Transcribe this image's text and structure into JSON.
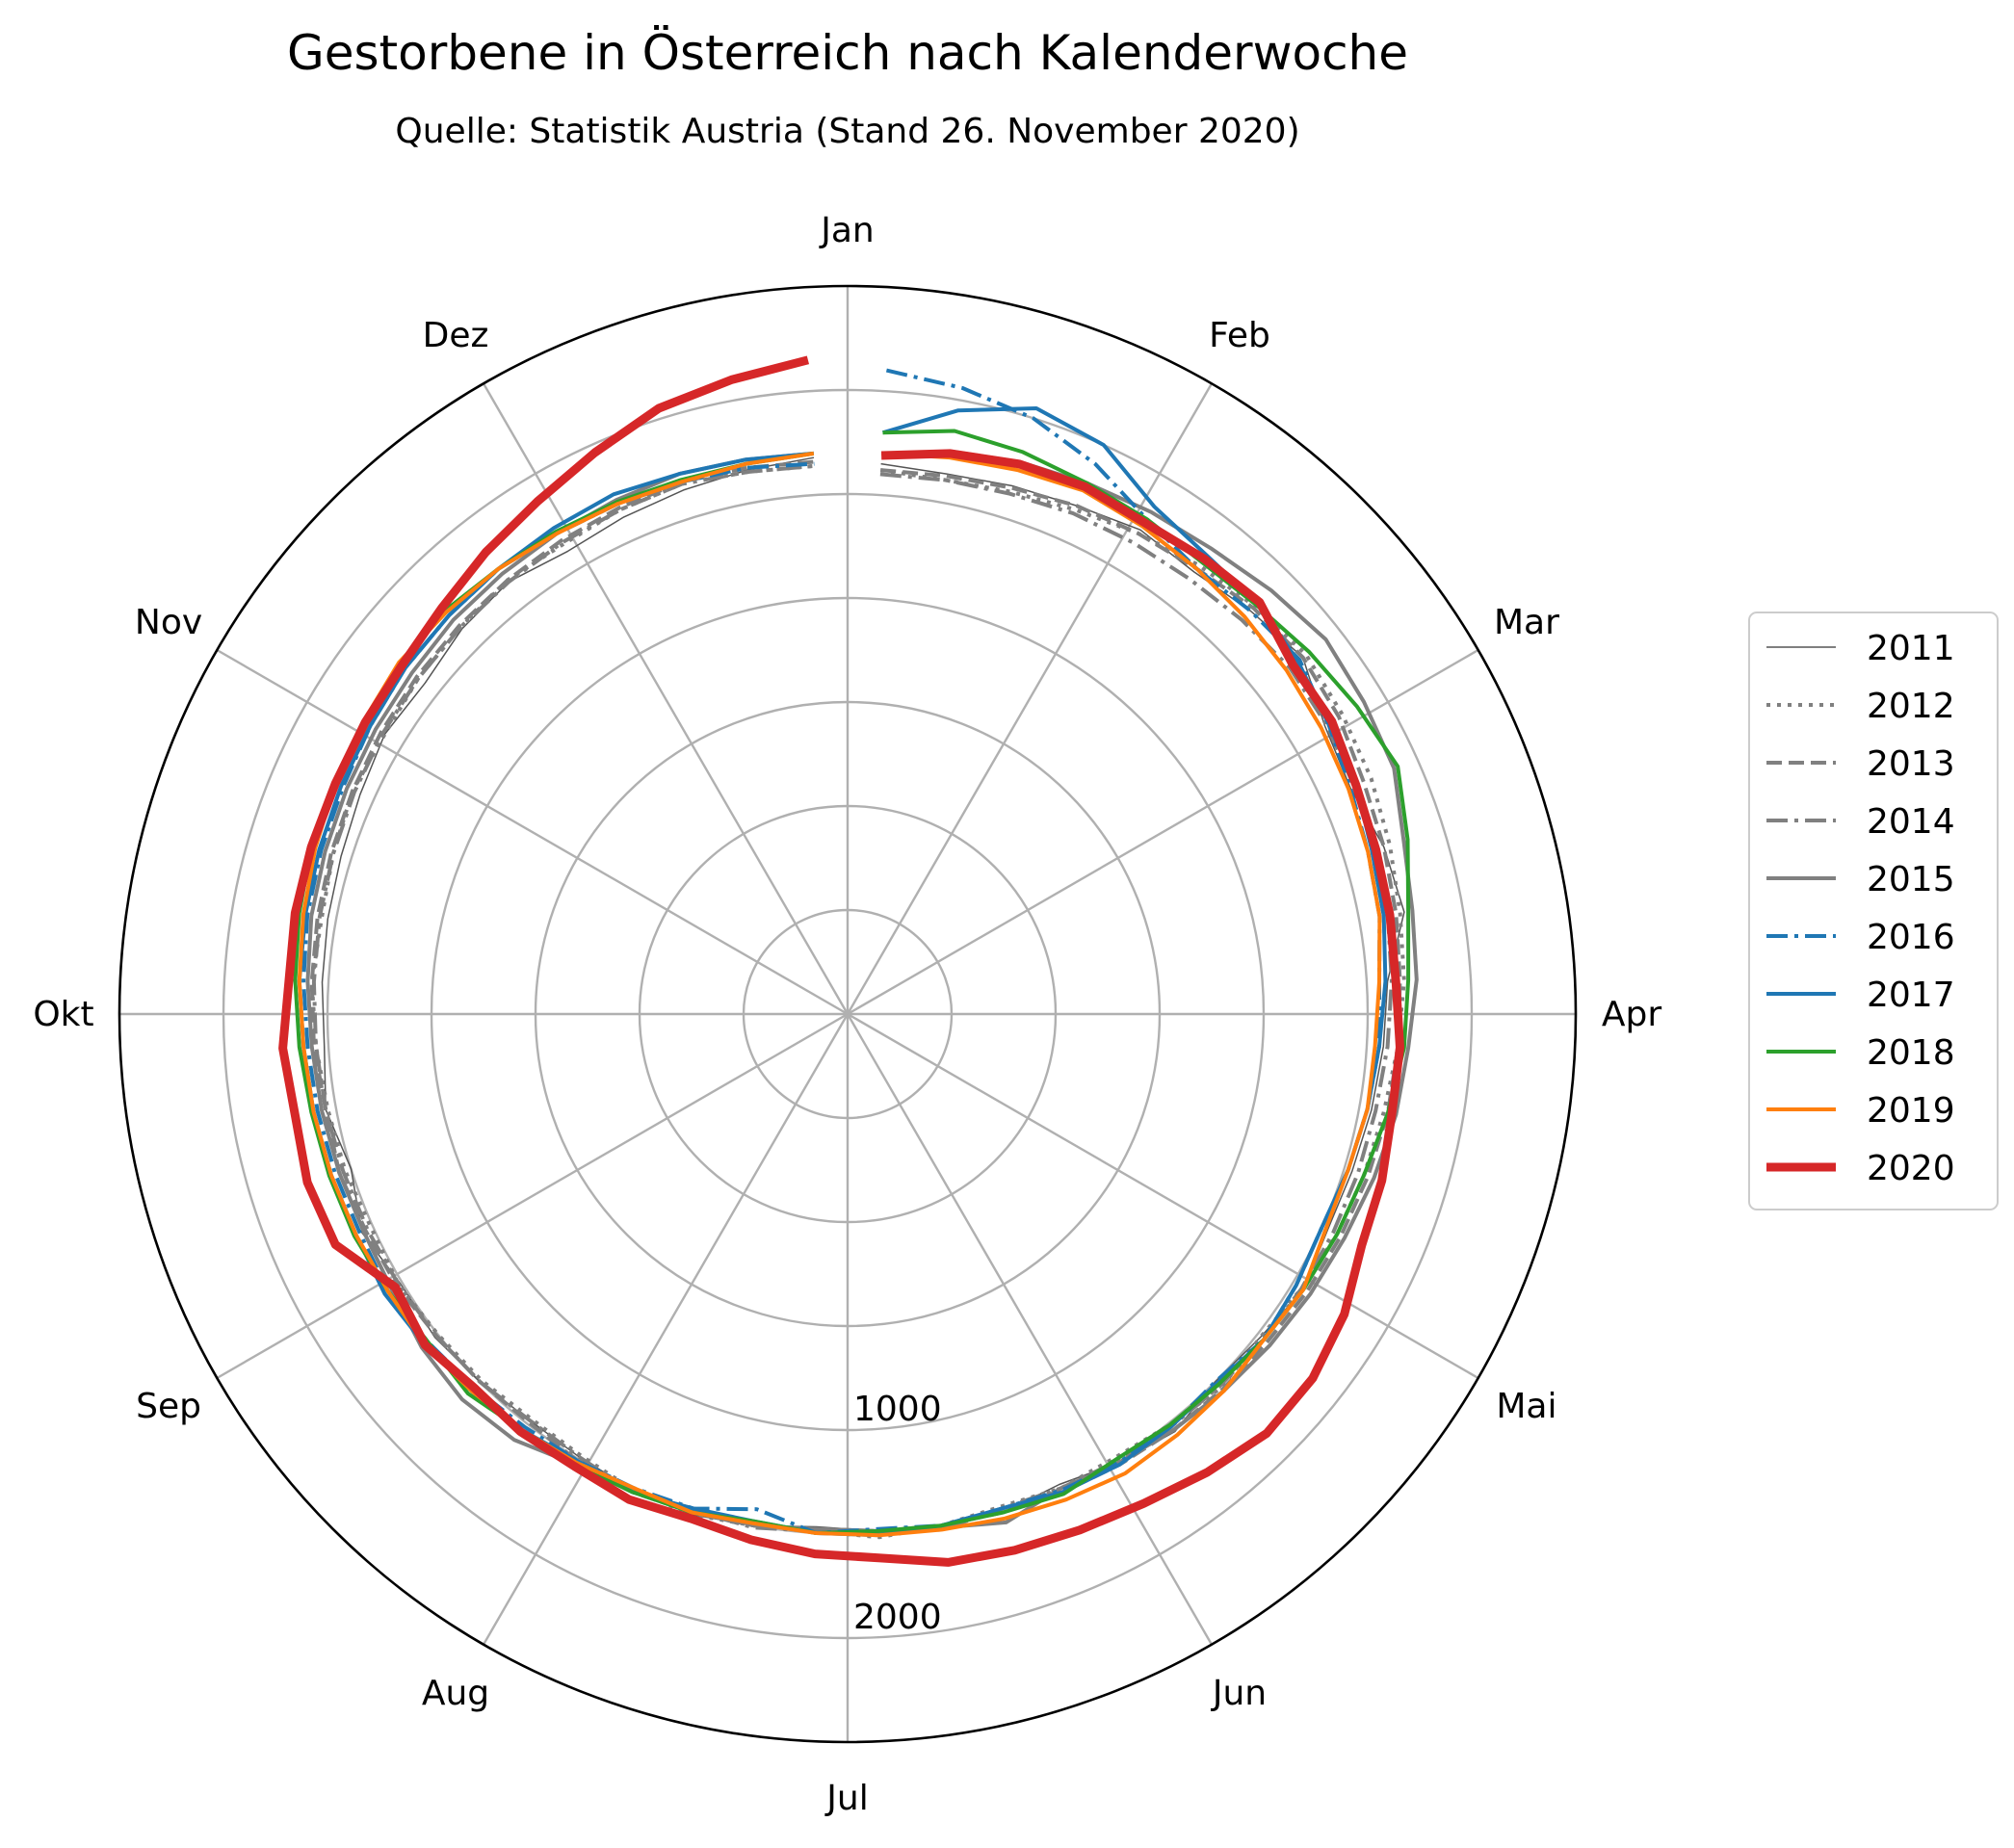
{
  "chart_data": {
    "type": "line",
    "projection": "polar",
    "title": "Gestorbene in Österreich nach Kalenderwoche",
    "subtitle": "Quelle: Statistik Austria (Stand 26. November 2020)",
    "theta_unit": "Kalenderwoche",
    "theta_direction": "clockwise",
    "theta_zero": "top",
    "month_labels": [
      "Jan",
      "Feb",
      "Mar",
      "Apr",
      "Mai",
      "Jun",
      "Jul",
      "Aug",
      "Sep",
      "Okt",
      "Nov",
      "Dez"
    ],
    "radial_ticks": [
      1000,
      2000
    ],
    "radial_range": [
      -1000,
      2500
    ],
    "grid": true,
    "legend_position": "right",
    "series": [
      {
        "name": "2011",
        "color": "#555555",
        "dash": "solid",
        "width": 1.5,
        "values": [
          1650,
          1640,
          1660,
          1680,
          1720,
          1700,
          1740,
          1780,
          1680,
          1650,
          1700,
          1720,
          1600,
          1580,
          1560,
          1540,
          1530,
          1560,
          1520,
          1500,
          1550,
          1520,
          1480,
          1510,
          1500,
          1490,
          1470,
          1500,
          1520,
          1510,
          1490,
          1480,
          1500,
          1520,
          1510,
          1560,
          1500,
          1550,
          1520,
          1530,
          1540,
          1550,
          1570,
          1600,
          1580,
          1620,
          1640,
          1600,
          1620,
          1640,
          1660,
          1680
        ]
      },
      {
        "name": "2012",
        "color": "#808080",
        "dash": "dotted",
        "width": 4,
        "values": [
          1620,
          1610,
          1630,
          1660,
          1700,
          1740,
          1770,
          1800,
          1780,
          1760,
          1730,
          1700,
          1680,
          1650,
          1620,
          1600,
          1580,
          1550,
          1520,
          1540,
          1510,
          1490,
          1500,
          1480,
          1500,
          1520,
          1490,
          1500,
          1520,
          1510,
          1480,
          1470,
          1490,
          1500,
          1520,
          1510,
          1530,
          1540,
          1560,
          1580,
          1570,
          1590,
          1610,
          1600,
          1620,
          1630,
          1650,
          1640,
          1660,
          1670,
          1650,
          1640
        ]
      },
      {
        "name": "2013",
        "color": "#808080",
        "dash": "dashed",
        "width": 4,
        "values": [
          1620,
          1630,
          1650,
          1680,
          1700,
          1720,
          1760,
          1780,
          1760,
          1720,
          1700,
          1680,
          1660,
          1650,
          1640,
          1620,
          1600,
          1580,
          1560,
          1550,
          1540,
          1530,
          1520,
          1510,
          1500,
          1490,
          1480,
          1500,
          1510,
          1520,
          1510,
          1490,
          1500,
          1510,
          1530,
          1540,
          1560,
          1550,
          1570,
          1580,
          1590,
          1600,
          1610,
          1620,
          1630,
          1640,
          1650,
          1660,
          1670,
          1680,
          1670,
          1660
        ]
      },
      {
        "name": "2014",
        "color": "#808080",
        "dash": "dashdot",
        "width": 4,
        "values": [
          1600,
          1610,
          1620,
          1640,
          1650,
          1660,
          1680,
          1700,
          1690,
          1670,
          1660,
          1640,
          1620,
          1600,
          1580,
          1570,
          1560,
          1550,
          1540,
          1530,
          1520,
          1510,
          1500,
          1490,
          1520,
          1500,
          1490,
          1510,
          1500,
          1520,
          1490,
          1480,
          1500,
          1510,
          1520,
          1530,
          1540,
          1550,
          1560,
          1570,
          1580,
          1590,
          1600,
          1610,
          1620,
          1630,
          1640,
          1650,
          1660,
          1670,
          1650,
          1640
        ]
      },
      {
        "name": "2015",
        "color": "#808080",
        "dash": "solid",
        "width": 4,
        "values": [
          1700,
          1750,
          1780,
          1800,
          1820,
          1840,
          1880,
          1920,
          1900,
          1880,
          1800,
          1760,
          1740,
          1700,
          1680,
          1650,
          1620,
          1600,
          1580,
          1560,
          1540,
          1520,
          1500,
          1560,
          1510,
          1490,
          1480,
          1500,
          1490,
          1520,
          1530,
          1600,
          1620,
          1600,
          1560,
          1550,
          1560,
          1570,
          1580,
          1600,
          1620,
          1630,
          1640,
          1650,
          1660,
          1680,
          1690,
          1700,
          1710,
          1720,
          1710,
          1700
        ]
      },
      {
        "name": "2016",
        "color": "#1f77b4",
        "dash": "dashdot",
        "width": 4,
        "values": [
          2100,
          2060,
          2000,
          1900,
          1780,
          1720,
          1740,
          1760,
          1700,
          1650,
          1620,
          1600,
          1560,
          1560,
          1540,
          1520,
          1500,
          1520,
          1540,
          1500,
          1520,
          1520,
          1510,
          1490,
          1500,
          1480,
          1500,
          1420,
          1490,
          1500,
          1510,
          1520,
          1540,
          1560,
          1580,
          1570,
          1580,
          1590,
          1600,
          1620,
          1640,
          1650,
          1660,
          1680,
          1700,
          1710,
          1720,
          1700,
          1690,
          1680,
          1670,
          1650
        ]
      },
      {
        "name": "2017",
        "color": "#1f77b4",
        "dash": "solid",
        "width": 4,
        "values": [
          1800,
          1950,
          2050,
          2000,
          1850,
          1800,
          1790,
          1750,
          1700,
          1680,
          1640,
          1620,
          1590,
          1560,
          1540,
          1520,
          1500,
          1520,
          1540,
          1510,
          1520,
          1530,
          1520,
          1490,
          1500,
          1510,
          1500,
          1480,
          1490,
          1520,
          1510,
          1540,
          1560,
          1580,
          1600,
          1590,
          1600,
          1610,
          1620,
          1640,
          1650,
          1660,
          1670,
          1680,
          1700,
          1710,
          1720,
          1730,
          1740,
          1720,
          1710,
          1700
        ]
      },
      {
        "name": "2018",
        "color": "#2ca02c",
        "dash": "solid",
        "width": 4,
        "values": [
          1800,
          1850,
          1830,
          1800,
          1780,
          1760,
          1780,
          1820,
          1860,
          1900,
          1820,
          1740,
          1700,
          1680,
          1640,
          1600,
          1580,
          1560,
          1540,
          1520,
          1510,
          1500,
          1530,
          1510,
          1500,
          1490,
          1500,
          1480,
          1510,
          1520,
          1530,
          1540,
          1580,
          1560,
          1580,
          1600,
          1610,
          1620,
          1640,
          1660,
          1680,
          1700,
          1710,
          1720,
          1730,
          1740,
          1720,
          1710,
          1700,
          1690,
          1690,
          1700
        ]
      },
      {
        "name": "2019",
        "color": "#ff7f0e",
        "dash": "solid",
        "width": 4,
        "values": [
          1700,
          1720,
          1740,
          1760,
          1740,
          1720,
          1700,
          1680,
          1660,
          1640,
          1620,
          1600,
          1560,
          1540,
          1540,
          1520,
          1520,
          1560,
          1540,
          1560,
          1570,
          1580,
          1560,
          1540,
          1520,
          1510,
          1500,
          1490,
          1510,
          1500,
          1520,
          1540,
          1560,
          1580,
          1580,
          1590,
          1600,
          1610,
          1620,
          1640,
          1660,
          1680,
          1700,
          1720,
          1740,
          1730,
          1720,
          1700,
          1690,
          1680,
          1690,
          1700
        ]
      },
      {
        "name": "2020",
        "color": "#d62728",
        "dash": "solid",
        "width": 9,
        "values": [
          1690,
          1740,
          1770,
          1780,
          1760,
          1780,
          1800,
          1720,
          1720,
          1680,
          1660,
          1650,
          1640,
          1660,
          1660,
          1690,
          1710,
          1790,
          1840,
          1850,
          1800,
          1750,
          1720,
          1700,
          1680,
          1620,
          1600,
          1570,
          1540,
          1560,
          1540,
          1550,
          1540,
          1580,
          1540,
          1700,
          1720,
          1700,
          1720,
          1690,
          1700,
          1700,
          1700,
          1710,
          1720,
          1760,
          1820,
          1880,
          1960,
          2050,
          2100,
          2150
        ]
      }
    ]
  }
}
